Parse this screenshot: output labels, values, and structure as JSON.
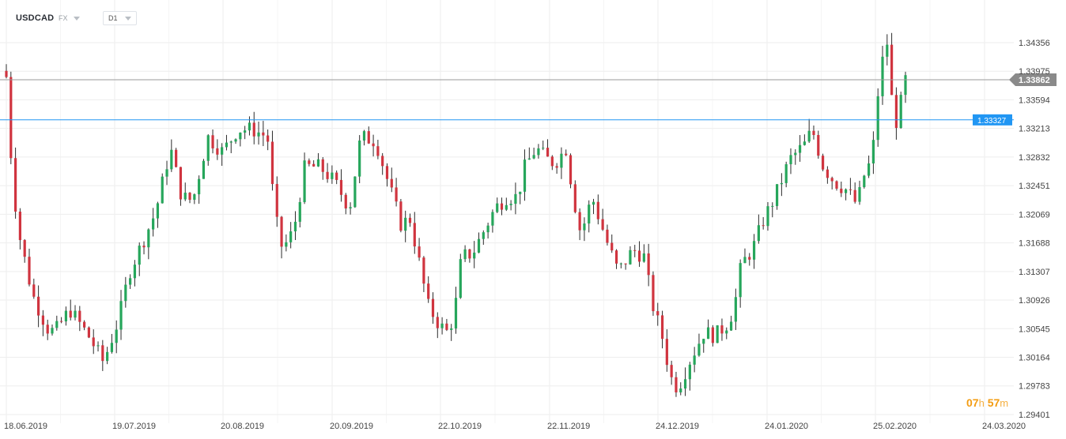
{
  "toolbar": {
    "symbol": "USDCAD",
    "market": "FX",
    "timeframe": "D1"
  },
  "countdown": {
    "hours": "07",
    "h_unit": "h",
    "minutes": "57",
    "m_unit": "m"
  },
  "colors": {
    "up": "#26a65b",
    "down": "#d0343f",
    "wick": "#2b2b2b",
    "grid": "#eeeeee",
    "price_line": "#9a9a9a",
    "level_line": "#2196f3",
    "countdown": "#f39c12"
  },
  "chart_data": {
    "type": "candlestick",
    "title": "USDCAD",
    "timeframe": "D1",
    "ylim": [
      1.2921,
      1.3474
    ],
    "x_ticks": [
      "18.06.2019",
      "19.07.2019",
      "20.08.2019",
      "20.09.2019",
      "22.10.2019",
      "22.11.2019",
      "24.12.2019",
      "24.01.2020",
      "25.02.2020",
      "24.03.2020"
    ],
    "y_ticks": [
      "1.34356",
      "1.33975",
      "1.33594",
      "1.33213",
      "1.32832",
      "1.32451",
      "1.32069",
      "1.31688",
      "1.31307",
      "1.30926",
      "1.30545",
      "1.30164",
      "1.29783",
      "1.29401"
    ],
    "y_tick_values": [
      1.34356,
      1.33975,
      1.33594,
      1.33213,
      1.32832,
      1.32451,
      1.32069,
      1.31688,
      1.31307,
      1.30926,
      1.30545,
      1.30164,
      1.29783,
      1.29401
    ],
    "last_price": {
      "label": "1.33862",
      "value": 1.33862
    },
    "level_line": {
      "label": "1.33327",
      "value": 1.33327
    },
    "candles_total": 197,
    "path": [
      [
        0,
        1.339
      ],
      [
        1,
        1.33
      ],
      [
        3,
        1.319
      ],
      [
        7,
        1.31
      ],
      [
        11,
        1.3055
      ],
      [
        13,
        1.305
      ],
      [
        17,
        1.308
      ],
      [
        22,
        1.3045
      ],
      [
        26,
        1.301
      ],
      [
        30,
        1.3065
      ],
      [
        33,
        1.313
      ],
      [
        37,
        1.3175
      ],
      [
        40,
        1.321
      ],
      [
        44,
        1.3295
      ],
      [
        47,
        1.323
      ],
      [
        50,
        1.3225
      ],
      [
        54,
        1.331
      ],
      [
        58,
        1.329
      ],
      [
        62,
        1.332
      ],
      [
        66,
        1.332
      ],
      [
        70,
        1.331
      ],
      [
        72,
        1.3205
      ],
      [
        74,
        1.316
      ],
      [
        77,
        1.3185
      ],
      [
        80,
        1.327
      ],
      [
        84,
        1.327
      ],
      [
        88,
        1.325
      ],
      [
        92,
        1.3215
      ],
      [
        95,
        1.331
      ],
      [
        99,
        1.3305
      ],
      [
        102,
        1.3255
      ],
      [
        106,
        1.319
      ],
      [
        108,
        1.3205
      ],
      [
        111,
        1.3135
      ],
      [
        113,
        1.3085
      ],
      [
        116,
        1.306
      ],
      [
        118,
        1.305
      ],
      [
        120,
        1.307
      ],
      [
        122,
        1.315
      ],
      [
        125,
        1.3155
      ],
      [
        128,
        1.3185
      ],
      [
        131,
        1.3215
      ],
      [
        134,
        1.323
      ],
      [
        137,
        1.323
      ],
      [
        139,
        1.327
      ],
      [
        142,
        1.3295
      ],
      [
        145,
        1.328
      ],
      [
        147,
        1.3275
      ],
      [
        150,
        1.3295
      ],
      [
        152,
        1.323
      ],
      [
        154,
        1.318
      ],
      [
        157,
        1.323
      ],
      [
        161,
        1.317
      ],
      [
        164,
        1.313
      ],
      [
        168,
        1.316
      ],
      [
        171,
        1.315
      ],
      [
        173,
        1.309
      ],
      [
        176,
        1.304
      ],
      [
        178,
        1.299
      ],
      [
        180,
        1.2975
      ],
      [
        183,
        1.301
      ],
      [
        187,
        1.305
      ],
      [
        190,
        1.3045
      ],
      [
        193,
        1.306
      ],
      [
        195,
        1.308
      ],
      [
        197,
        1.314
      ],
      [
        200,
        1.316
      ],
      [
        203,
        1.32
      ],
      [
        206,
        1.323
      ],
      [
        210,
        1.328
      ],
      [
        214,
        1.33
      ],
      [
        216,
        1.332
      ],
      [
        219,
        1.327
      ],
      [
        222,
        1.325
      ],
      [
        225,
        1.324
      ],
      [
        228,
        1.322
      ],
      [
        230,
        1.326
      ],
      [
        232,
        1.328
      ],
      [
        233,
        1.333
      ],
      [
        234,
        1.339
      ],
      [
        236,
        1.344
      ],
      [
        238,
        1.332
      ],
      [
        240,
        1.336
      ],
      [
        241,
        1.3386
      ]
    ]
  }
}
